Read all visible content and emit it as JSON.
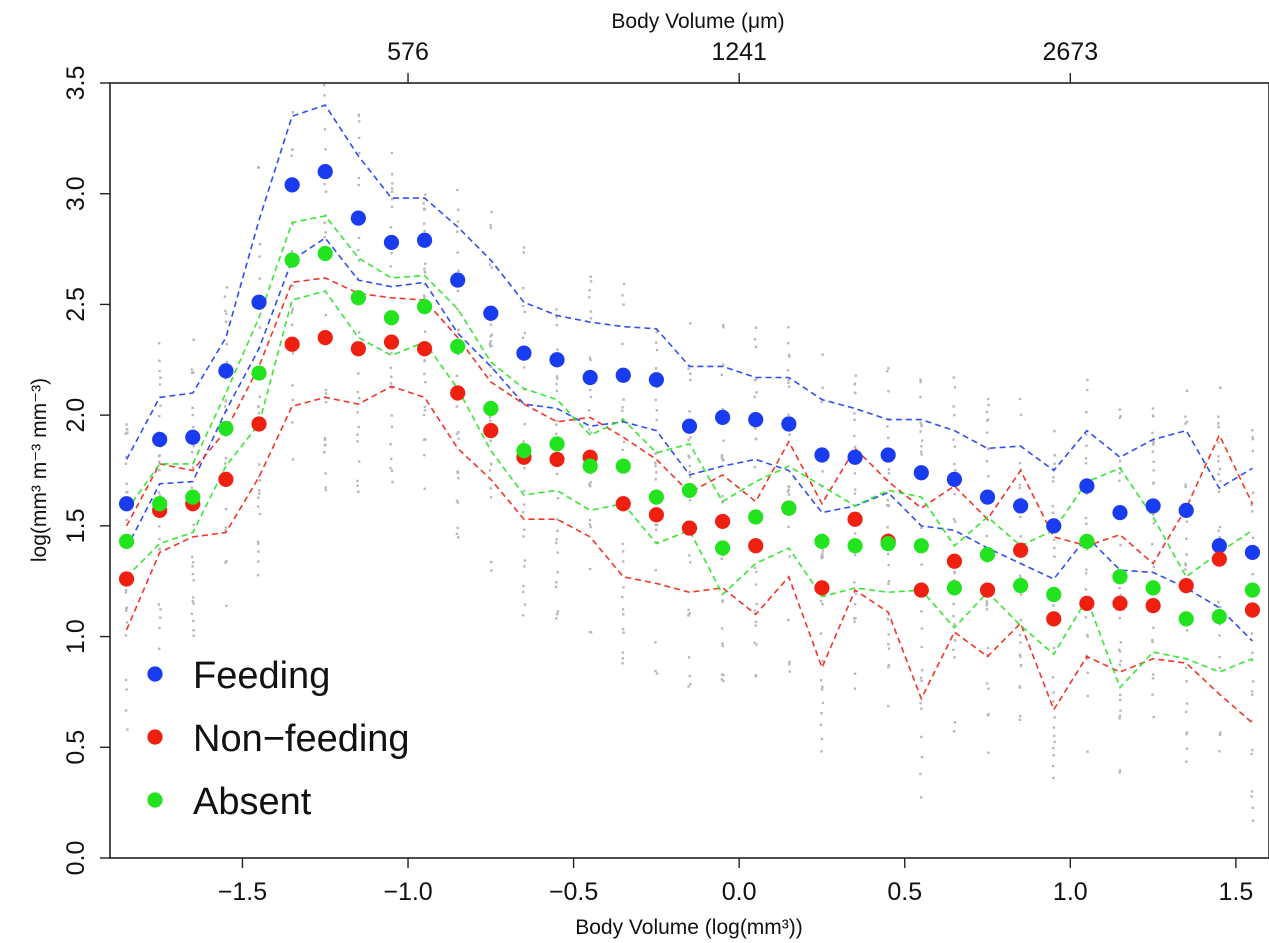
{
  "chart_data": {
    "type": "scatter",
    "title": "",
    "xlabel": "Body Volume (log(mm³))",
    "ylabel": "log(mm³ m⁻³ mm⁻³)",
    "top_axis_label": "Body Volume (μm)",
    "top_ticks": [
      {
        "x": -1.0,
        "label": "576"
      },
      {
        "x": 0.0,
        "label": "1241"
      },
      {
        "x": 1.0,
        "label": "2673"
      }
    ],
    "xlim": [
      -1.9,
      1.6
    ],
    "ylim": [
      0.0,
      3.5
    ],
    "x_ticks": [
      -1.5,
      -1.0,
      -0.5,
      0.0,
      0.5,
      1.0,
      1.5
    ],
    "x_tick_labels": [
      "−1.5",
      "−1.0",
      "−0.5",
      "0.0",
      "0.5",
      "1.0",
      "1.5"
    ],
    "y_ticks": [
      0.0,
      0.5,
      1.0,
      1.5,
      2.0,
      2.5,
      3.0,
      3.5
    ],
    "y_tick_labels": [
      "0.0",
      "0.5",
      "1.0",
      "1.5",
      "2.0",
      "2.5",
      "3.0",
      "3.5"
    ],
    "grid": false,
    "legend_position": "bottom-left",
    "x": [
      -1.85,
      -1.75,
      -1.65,
      -1.55,
      -1.45,
      -1.35,
      -1.25,
      -1.15,
      -1.05,
      -0.95,
      -0.85,
      -0.75,
      -0.65,
      -0.55,
      -0.45,
      -0.35,
      -0.25,
      -0.15,
      -0.05,
      0.05,
      0.15,
      0.25,
      0.35,
      0.45,
      0.55,
      0.65,
      0.75,
      0.85,
      0.95,
      1.05,
      1.15,
      1.25,
      1.35,
      1.45,
      1.55
    ],
    "series": [
      {
        "name": "Feeding",
        "color": "#1a3cf0",
        "values": [
          1.6,
          1.89,
          1.9,
          2.2,
          2.51,
          3.04,
          3.1,
          2.89,
          2.78,
          2.79,
          2.61,
          2.46,
          2.28,
          2.25,
          2.17,
          2.18,
          2.16,
          1.95,
          1.99,
          1.98,
          1.96,
          1.82,
          1.81,
          1.82,
          1.74,
          1.71,
          1.63,
          1.59,
          1.5,
          1.68,
          1.56,
          1.59,
          1.57,
          1.41,
          1.38
        ],
        "ci_upper": [
          1.8,
          2.08,
          2.1,
          2.35,
          2.88,
          3.35,
          3.4,
          3.17,
          2.98,
          2.98,
          2.85,
          2.7,
          2.51,
          2.45,
          2.42,
          2.4,
          2.39,
          2.22,
          2.22,
          2.17,
          2.17,
          2.07,
          2.03,
          1.98,
          1.98,
          1.93,
          1.85,
          1.86,
          1.75,
          1.93,
          1.81,
          1.89,
          1.93,
          1.67,
          1.76
        ],
        "ci_lower": [
          1.4,
          1.69,
          1.7,
          2.02,
          2.3,
          2.7,
          2.8,
          2.61,
          2.58,
          2.6,
          2.37,
          2.22,
          2.05,
          2.03,
          1.95,
          1.97,
          1.93,
          1.73,
          1.77,
          1.8,
          1.75,
          1.56,
          1.59,
          1.65,
          1.5,
          1.48,
          1.4,
          1.33,
          1.26,
          1.45,
          1.3,
          1.29,
          1.22,
          1.13,
          0.98
        ]
      },
      {
        "name": "Non−feeding",
        "color": "#f02010",
        "values": [
          1.26,
          1.57,
          1.6,
          1.71,
          1.96,
          2.32,
          2.35,
          2.3,
          2.33,
          2.3,
          2.1,
          1.93,
          1.81,
          1.8,
          1.81,
          1.6,
          1.55,
          1.49,
          1.52,
          1.41,
          1.58,
          1.22,
          1.53,
          1.43,
          1.21,
          1.34,
          1.21,
          1.39,
          1.08,
          1.15,
          1.15,
          1.14,
          1.23,
          1.35,
          1.12
        ],
        "ci_upper": [
          1.5,
          1.78,
          1.75,
          1.93,
          2.22,
          2.6,
          2.62,
          2.55,
          2.53,
          2.52,
          2.35,
          2.15,
          2.05,
          1.97,
          1.99,
          1.9,
          1.8,
          1.65,
          1.73,
          1.61,
          1.88,
          1.6,
          1.85,
          1.7,
          1.58,
          1.68,
          1.53,
          1.75,
          1.45,
          1.41,
          1.46,
          1.33,
          1.58,
          1.91,
          1.6
        ],
        "ci_lower": [
          1.03,
          1.38,
          1.45,
          1.47,
          1.72,
          2.04,
          2.08,
          2.05,
          2.13,
          2.08,
          1.85,
          1.71,
          1.53,
          1.53,
          1.45,
          1.27,
          1.24,
          1.2,
          1.22,
          1.1,
          1.27,
          0.86,
          1.21,
          1.11,
          0.72,
          1.02,
          0.91,
          1.06,
          0.67,
          0.91,
          0.84,
          0.9,
          0.88,
          0.74,
          0.61
        ]
      },
      {
        "name": "Absent",
        "color": "#22e41e",
        "values": [
          1.43,
          1.6,
          1.63,
          1.94,
          2.19,
          2.7,
          2.73,
          2.53,
          2.44,
          2.49,
          2.31,
          2.03,
          1.84,
          1.87,
          1.77,
          1.77,
          1.63,
          1.66,
          1.4,
          1.54,
          1.58,
          1.43,
          1.41,
          1.42,
          1.41,
          1.22,
          1.37,
          1.23,
          1.19,
          1.43,
          1.27,
          1.22,
          1.08,
          1.09,
          1.21
        ],
        "ci_upper": [
          1.57,
          1.78,
          1.78,
          2.1,
          2.44,
          2.87,
          2.9,
          2.71,
          2.62,
          2.63,
          2.48,
          2.24,
          2.12,
          2.07,
          1.91,
          1.98,
          1.83,
          1.87,
          1.61,
          1.7,
          1.77,
          1.68,
          1.59,
          1.66,
          1.63,
          1.41,
          1.54,
          1.41,
          1.48,
          1.7,
          1.76,
          1.54,
          1.27,
          1.38,
          1.48
        ],
        "ci_lower": [
          1.27,
          1.42,
          1.47,
          1.77,
          1.96,
          2.52,
          2.56,
          2.35,
          2.27,
          2.33,
          2.12,
          1.84,
          1.64,
          1.66,
          1.57,
          1.6,
          1.42,
          1.48,
          1.19,
          1.33,
          1.4,
          1.18,
          1.22,
          1.2,
          1.21,
          1.04,
          1.2,
          1.05,
          0.92,
          1.17,
          0.77,
          0.93,
          0.9,
          0.84,
          0.9
        ]
      }
    ],
    "legend": [
      {
        "label": "Feeding",
        "color": "#1a3cf0"
      },
      {
        "label": "Non−feeding",
        "color": "#f02010"
      },
      {
        "label": "Absent",
        "color": "#22e41e"
      }
    ],
    "background_points_color": "#b8b8b8"
  }
}
